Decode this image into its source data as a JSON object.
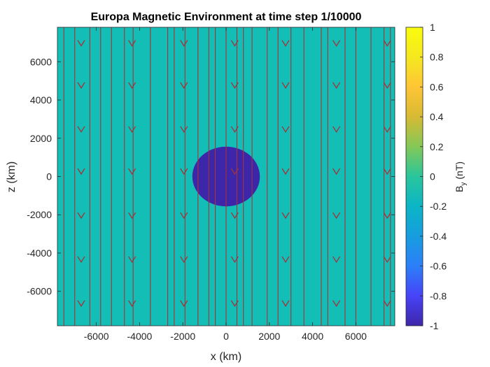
{
  "chart_data": {
    "type": "heatmap",
    "title": "Europa Magnetic Environment at time step 1/10000",
    "xlabel": "x (km)",
    "ylabel": "z (km)",
    "xlim": [
      -7800,
      7800
    ],
    "ylim": [
      -7800,
      7800
    ],
    "xticks": [
      -6000,
      -4000,
      -2000,
      0,
      2000,
      4000,
      6000
    ],
    "yticks": [
      -6000,
      -4000,
      -2000,
      0,
      2000,
      4000,
      6000
    ],
    "xtick_labels": [
      "-6000",
      "-4000",
      "-2000",
      "0",
      "2000",
      "4000",
      "6000"
    ],
    "ytick_labels": [
      "6000",
      "4000",
      "2000",
      "0",
      "-2000",
      "-4000",
      "-6000"
    ],
    "background_field_value": 0,
    "background_color": "#13BEB7",
    "body": {
      "shape": "ellipse",
      "center": [
        0,
        0
      ],
      "radius_x": 1560,
      "radius_z": 1560,
      "field_value": -1,
      "color": "#3E26A8"
    },
    "field_lines": {
      "direction": "negative z",
      "color": "#A2343A",
      "x_positions": [
        -7500,
        -7000,
        -6300,
        -5800,
        -5300,
        -4700,
        -4300,
        -3500,
        -2700,
        -2400,
        -1900,
        -1300,
        -800,
        -500,
        0,
        500,
        800,
        1200,
        1900,
        2400,
        3000,
        3600,
        4400,
        4700,
        5500,
        6000,
        6700,
        7300,
        7600
      ],
      "arrow_x_positions": [
        -6700,
        -4350,
        -1950,
        400,
        2750,
        5100,
        7450
      ],
      "arrow_z_positions": [
        6900,
        4700,
        2400,
        200,
        -2100,
        -4400,
        -6700
      ]
    },
    "colorbar": {
      "label": "B",
      "label_subscript": "y",
      "label_unit": "(nT)",
      "range": [
        -1,
        1
      ],
      "ticks": [
        1,
        0.8,
        0.6,
        0.4,
        0.2,
        0,
        -0.2,
        -0.4,
        -0.6,
        -0.8,
        -1
      ],
      "tick_labels": [
        "1",
        "0.8",
        "0.6",
        "0.4",
        "0.2",
        "0",
        "-0.2",
        "-0.4",
        "-0.6",
        "-0.8",
        "-1"
      ],
      "colormap": "parula",
      "colormap_stops": [
        "#3E26A8",
        "#4743F8",
        "#2C7FF8",
        "#179DDF",
        "#0BB5C6",
        "#2AC59C",
        "#83C857",
        "#D7BA34",
        "#FEC535",
        "#F5E81F",
        "#F9FB0E"
      ]
    }
  }
}
